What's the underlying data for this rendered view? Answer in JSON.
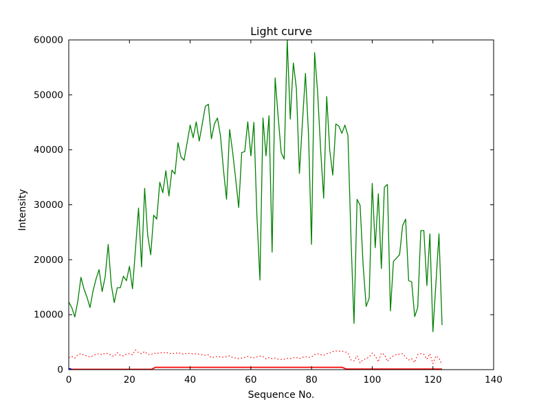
{
  "figure": {
    "background": "#ffffff",
    "axis_color": "#000000"
  },
  "chart_data": {
    "type": "line",
    "title": "Light curve",
    "xlabel": "Sequence No.",
    "ylabel": "Intensity",
    "xlim": [
      0,
      140
    ],
    "ylim": [
      0,
      60000
    ],
    "x_ticks": [
      0,
      20,
      40,
      60,
      80,
      100,
      120,
      140
    ],
    "y_ticks": [
      0,
      10000,
      20000,
      30000,
      40000,
      50000,
      60000
    ],
    "grid": false,
    "legend": null,
    "tick_direction": "in",
    "series": [
      {
        "name": "intensity-curve",
        "color": "#008000",
        "style": "solid",
        "width": 1.3,
        "x_start": 0,
        "x_step": 1,
        "values": [
          12300,
          11300,
          9600,
          12500,
          16800,
          14700,
          13200,
          11300,
          14300,
          16500,
          18200,
          14200,
          16900,
          22800,
          15500,
          12200,
          14900,
          14900,
          17000,
          16200,
          18800,
          14700,
          22000,
          29400,
          18700,
          33000,
          24500,
          20900,
          28100,
          27400,
          34100,
          32200,
          36200,
          31600,
          36300,
          35600,
          41300,
          38700,
          38100,
          41300,
          44500,
          42200,
          45100,
          41600,
          44700,
          47900,
          48300,
          42000,
          44700,
          45800,
          42500,
          36300,
          31000,
          43700,
          39600,
          34700,
          29500,
          39500,
          39700,
          45100,
          38900,
          45000,
          28000,
          16300,
          45800,
          38900,
          46200,
          21400,
          53100,
          46000,
          39500,
          38300,
          60000,
          45600,
          55800,
          51200,
          35700,
          45000,
          53900,
          43000,
          22800,
          57700,
          50500,
          40000,
          31200,
          49700,
          40000,
          35400,
          44700,
          44300,
          43000,
          44500,
          42600,
          24000,
          8400,
          31000,
          29900,
          19000,
          11500,
          13000,
          33900,
          22200,
          32000,
          18400,
          33200,
          33700,
          10700,
          19700,
          20300,
          20900,
          26200,
          27400,
          16200,
          16000,
          9650,
          11300,
          25300,
          25300,
          15300,
          24700,
          6900,
          15800,
          24700,
          8100
        ]
      },
      {
        "name": "reference-dotted",
        "color": "#ff0000",
        "style": "dotted",
        "width": 1.2,
        "x_start": 0,
        "x_step": 1,
        "values": [
          2200,
          2400,
          2100,
          2700,
          2900,
          2600,
          2500,
          2300,
          2500,
          2800,
          2900,
          2700,
          3000,
          2900,
          2600,
          2400,
          3100,
          2600,
          2500,
          2800,
          2900,
          2700,
          3600,
          3100,
          2900,
          3300,
          2800,
          2700,
          3000,
          2900,
          3100,
          3000,
          3200,
          2900,
          3000,
          2900,
          3100,
          2900,
          2800,
          3000,
          2900,
          2850,
          2900,
          2800,
          2700,
          2600,
          2700,
          2150,
          2300,
          2400,
          2300,
          2250,
          2350,
          2500,
          2200,
          2100,
          2000,
          2100,
          2200,
          2400,
          2200,
          2150,
          2300,
          2450,
          2400,
          1950,
          2200,
          2000,
          2100,
          1900,
          1850,
          1900,
          2050,
          2000,
          2150,
          2200,
          2000,
          2250,
          2350,
          2200,
          2300,
          2750,
          2880,
          2700,
          2600,
          2900,
          3000,
          3300,
          3400,
          3350,
          3400,
          3250,
          3000,
          1750,
          1600,
          2500,
          1250,
          1800,
          2000,
          2300,
          3000,
          2500,
          1400,
          3000,
          2750,
          1500,
          2100,
          2500,
          2750,
          2800,
          2900,
          2250,
          1750,
          2000,
          1300,
          2750,
          2900,
          2800,
          1900,
          2900,
          1100,
          2500,
          2100,
          900
        ]
      },
      {
        "name": "baseline-step",
        "color": "#ff0000",
        "style": "solid",
        "width": 1.8,
        "points": [
          [
            0,
            60
          ],
          [
            27.3,
            60
          ],
          [
            28.6,
            420
          ],
          [
            90,
            420
          ],
          [
            91.5,
            100
          ],
          [
            123,
            100
          ]
        ]
      },
      {
        "name": "origin-marker",
        "color": "#0000ff",
        "style": "solid",
        "width": 2.5,
        "points": [
          [
            0,
            100
          ],
          [
            0.8,
            100
          ]
        ]
      }
    ]
  }
}
